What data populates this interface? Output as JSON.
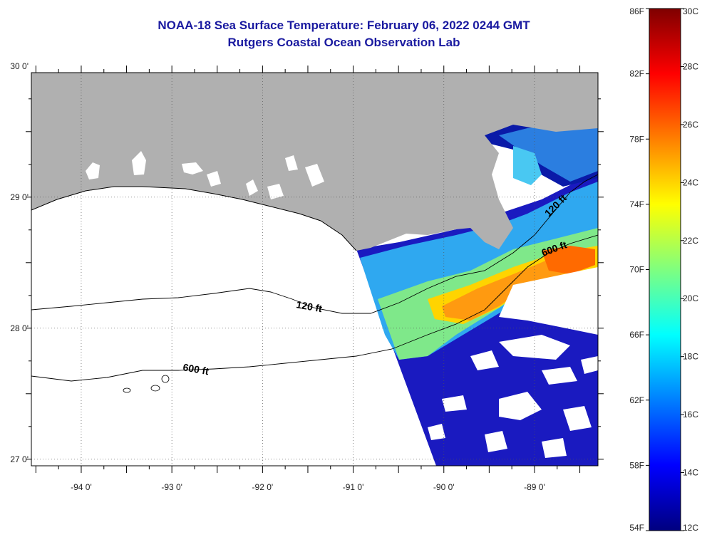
{
  "title": {
    "line1": "NOAA-18 Sea Surface Temperature:  February 06, 2022 0244 GMT",
    "line2": "Rutgers Coastal Ocean Observation Lab"
  },
  "map": {
    "lon_range": [
      -94.55,
      -88.3
    ],
    "lat_range": [
      26.95,
      29.95
    ],
    "lon_ticks": [
      {
        "value": -94,
        "label": "-94 0'"
      },
      {
        "value": -93,
        "label": "-93 0'"
      },
      {
        "value": -92,
        "label": "-92 0'"
      },
      {
        "value": -91,
        "label": "-91 0'"
      },
      {
        "value": -90,
        "label": "-90 0'"
      },
      {
        "value": -89,
        "label": "-89 0'"
      }
    ],
    "lat_ticks": [
      {
        "value": 30,
        "label": "30 0'"
      },
      {
        "value": 29,
        "label": "29 0'"
      },
      {
        "value": 28,
        "label": "28 0'"
      },
      {
        "value": 27,
        "label": "27 0'"
      }
    ],
    "contour_labels": [
      "120 ft",
      "600 ft",
      "120 ft",
      "600 ft"
    ],
    "colors": {
      "land": "#b0b0b0",
      "no_data": "#ffffff",
      "cloud": "#ffffff"
    }
  },
  "colorbar": {
    "fahrenheit_labels": [
      "86F",
      "82F",
      "78F",
      "74F",
      "70F",
      "66F",
      "62F",
      "58F",
      "54F"
    ],
    "celsius_labels": [
      "30C",
      "28C",
      "26C",
      "24C",
      "22C",
      "20C",
      "18C",
      "16C",
      "14C",
      "12C"
    ],
    "colors": [
      "#00007f",
      "#0000ff",
      "#007fff",
      "#00ffff",
      "#7fff7f",
      "#ffff00",
      "#ff7f00",
      "#ff0000",
      "#7f0000"
    ]
  }
}
